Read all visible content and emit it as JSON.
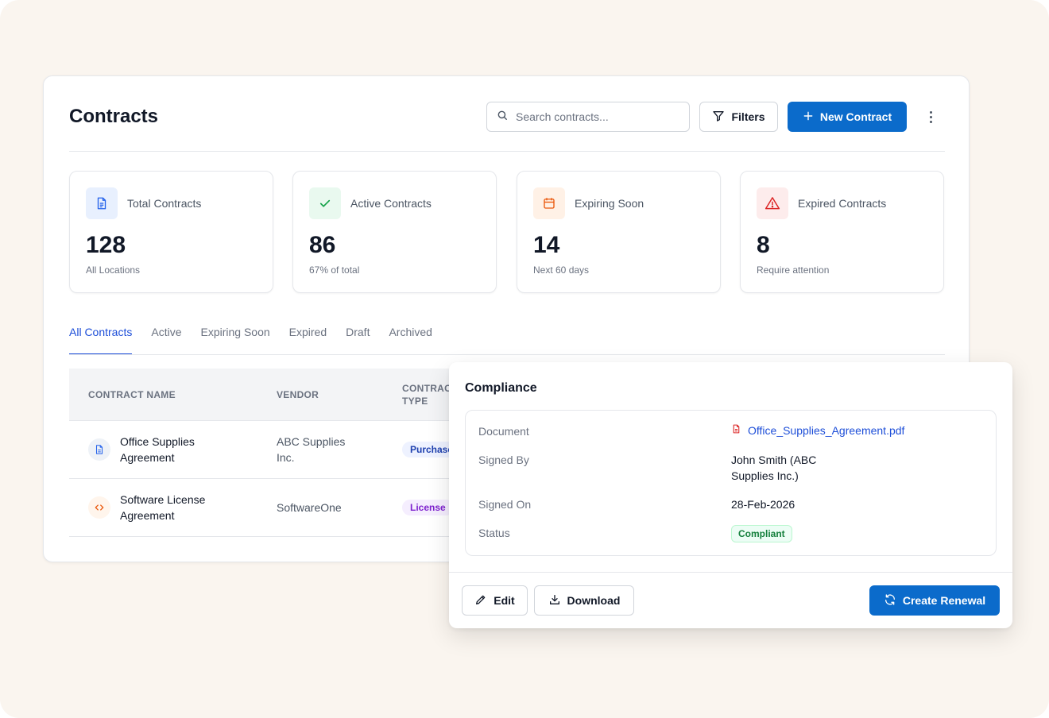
{
  "header": {
    "title": "Contracts",
    "search_placeholder": "Search contracts...",
    "filters_label": "Filters",
    "new_contract_label": "New Contract"
  },
  "stats": [
    {
      "label": "Total Contracts",
      "value": "128",
      "sub": "All Locations",
      "icon": "document-icon",
      "color": "#2563eb",
      "bg": "#e8f0fe"
    },
    {
      "label": "Active Contracts",
      "value": "86",
      "sub": "67% of total",
      "icon": "check-icon",
      "color": "#16a34a",
      "bg": "#e9f9ef"
    },
    {
      "label": "Expiring Soon",
      "value": "14",
      "sub": "Next 60 days",
      "icon": "calendar-icon",
      "color": "#ea580c",
      "bg": "#fff1e6"
    },
    {
      "label": "Expired Contracts",
      "value": "8",
      "sub": "Require attention",
      "icon": "warning-icon",
      "color": "#dc2626",
      "bg": "#fdecec"
    }
  ],
  "tabs": [
    "All Contracts",
    "Active",
    "Expiring Soon",
    "Expired",
    "Draft",
    "Archived"
  ],
  "table": {
    "columns": [
      "CONTRACT NAME",
      "VENDOR",
      "CONTRAC",
      "TYPE"
    ],
    "rows": [
      {
        "name_line1": "Office Supplies",
        "name_line2": "Agreement",
        "vendor_line1": "ABC Supplies",
        "vendor_line2": "Inc.",
        "type": "Purchase",
        "icon": "document-icon"
      },
      {
        "name_line1": "Software License",
        "name_line2": "Agreement",
        "vendor_line1": "SoftwareOne",
        "vendor_line2": "",
        "type": "License",
        "icon": "code-icon"
      }
    ]
  },
  "panel": {
    "title": "Compliance",
    "document_label": "Document",
    "document_value": "Office_Supplies_Agreement.pdf",
    "signed_by_label": "Signed By",
    "signed_by_line1": "John Smith (ABC",
    "signed_by_line2": "Supplies Inc.)",
    "signed_on_label": "Signed On",
    "signed_on_value": "28-Feb-2026",
    "status_label": "Status",
    "status_value": "Compliant",
    "edit_label": "Edit",
    "download_label": "Download",
    "renew_label": "Create Renewal"
  },
  "colors": {
    "accent": "#0b6bcb",
    "link": "#1d4ed8",
    "success": "#15803d"
  }
}
